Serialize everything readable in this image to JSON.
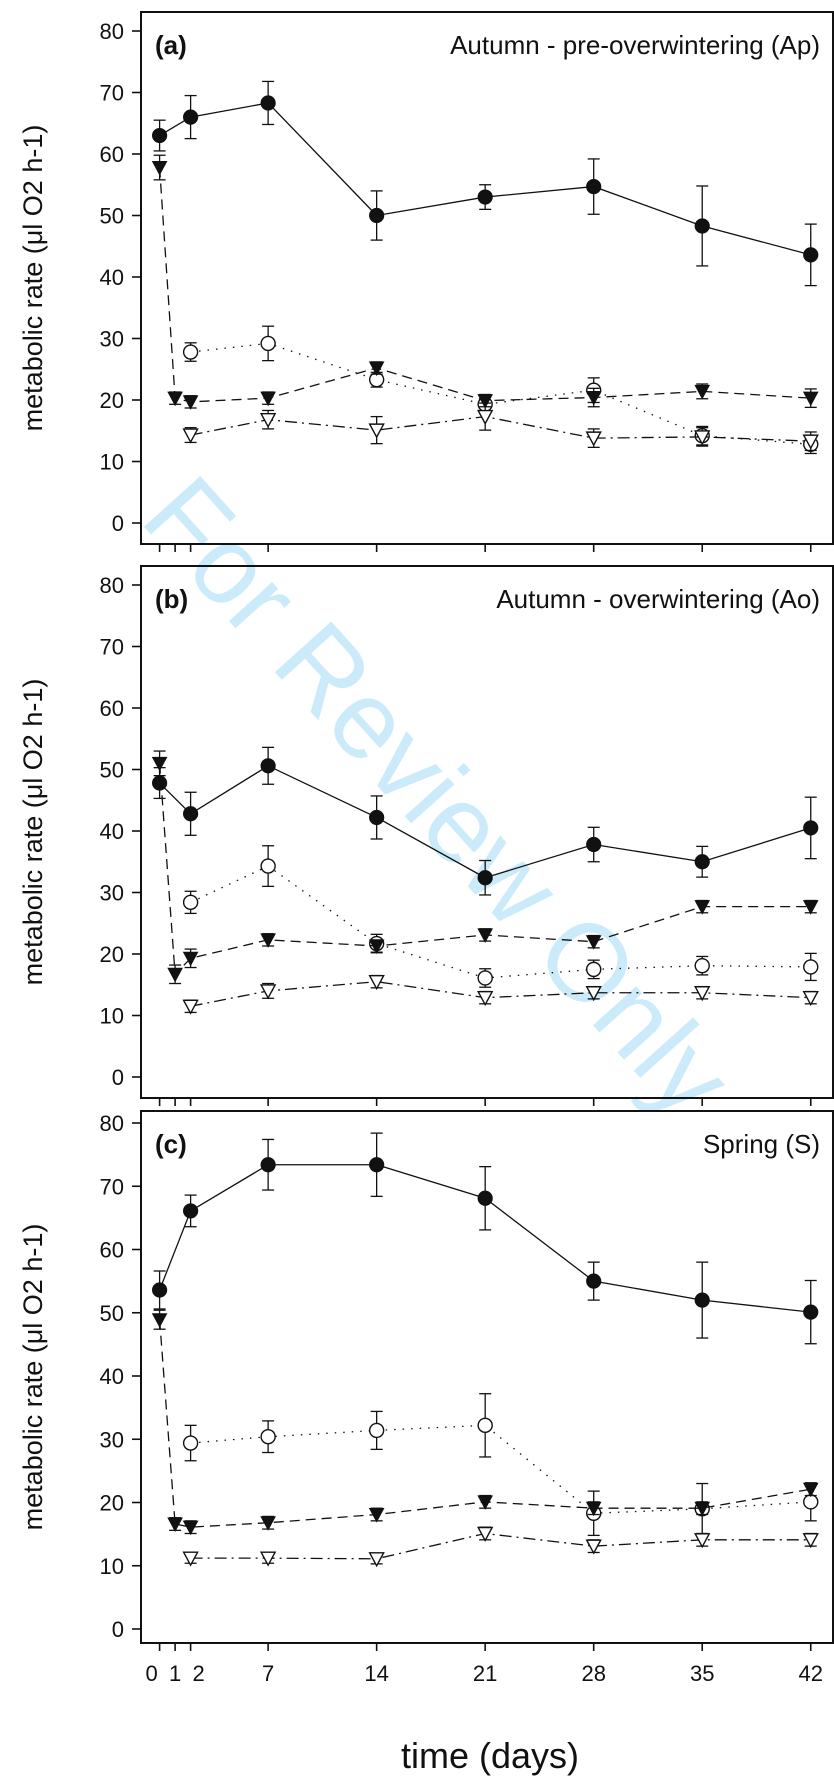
{
  "chart_data": [
    {
      "type": "line",
      "panel": "(a)",
      "title": "Autumn - pre-overwintering (Ap)",
      "ylabel": "metabolic rate (μl O2 h-1)",
      "ylim": [
        0,
        80
      ],
      "yticks": [
        "0",
        "10",
        "20",
        "30",
        "40",
        "50",
        "60",
        "70",
        "80"
      ],
      "series": [
        {
          "marker": "filled-circle",
          "line": "solid",
          "x": [
            0,
            2,
            7,
            14,
            21,
            28,
            35,
            42
          ],
          "y": [
            63,
            66,
            68.3,
            50,
            53,
            54.7,
            48.3,
            43.6
          ],
          "err": [
            2.5,
            3.5,
            3.5,
            4,
            2,
            4.5,
            6.5,
            5
          ]
        },
        {
          "marker": "open-circle",
          "line": "dotted",
          "x": [
            2,
            7,
            14,
            21,
            28,
            35,
            42
          ],
          "y": [
            27.8,
            29.2,
            23.3,
            19.3,
            21.6,
            14.2,
            12.8
          ],
          "err": [
            1.5,
            2.8,
            1.2,
            1.2,
            2,
            1.5,
            1.5
          ]
        },
        {
          "marker": "filled-triangle",
          "line": "dashed",
          "x": [
            0,
            1,
            2,
            7,
            14,
            21,
            28,
            35,
            42
          ],
          "y": [
            57.8,
            20.3,
            19.7,
            20.3,
            25.2,
            19.9,
            20.4,
            21.4,
            20.3
          ],
          "err": [
            2,
            1,
            1,
            1,
            1,
            1,
            1.5,
            1.2,
            1.5
          ]
        },
        {
          "marker": "open-triangle",
          "line": "dashdot",
          "x": [
            2,
            7,
            14,
            21,
            28,
            35,
            42
          ],
          "y": [
            14.3,
            16.8,
            15.1,
            17.3,
            13.8,
            14,
            13.3
          ],
          "err": [
            1.2,
            1.5,
            2.2,
            2.2,
            1.5,
            1.5,
            1.5
          ]
        }
      ]
    },
    {
      "type": "line",
      "panel": "(b)",
      "title": "Autumn - overwintering (Ao)",
      "ylabel": "metabolic rate (μl O2 h-1)",
      "ylim": [
        0,
        80
      ],
      "yticks": [
        "0",
        "10",
        "20",
        "30",
        "40",
        "50",
        "60",
        "70",
        "80"
      ],
      "series": [
        {
          "marker": "filled-circle",
          "line": "solid",
          "x": [
            0,
            2,
            7,
            14,
            21,
            28,
            35,
            42
          ],
          "y": [
            47.8,
            42.8,
            50.6,
            42.2,
            32.4,
            37.8,
            35,
            40.5
          ],
          "err": [
            2.5,
            3.5,
            3,
            3.5,
            2.8,
            2.8,
            2.5,
            5
          ]
        },
        {
          "marker": "open-circle",
          "line": "dotted",
          "x": [
            2,
            7,
            14,
            21,
            28,
            35,
            42
          ],
          "y": [
            28.4,
            34.3,
            21.7,
            16.1,
            17.5,
            18.1,
            17.9
          ],
          "err": [
            1.8,
            3.3,
            1.5,
            1.5,
            1.5,
            1.5,
            2.2
          ]
        },
        {
          "marker": "filled-triangle",
          "line": "dashed",
          "x": [
            0,
            1,
            2,
            7,
            14,
            21,
            28,
            35,
            42
          ],
          "y": [
            51,
            16.7,
            19.3,
            22.3,
            21.3,
            23.1,
            22,
            27.7,
            27.7
          ],
          "err": [
            2,
            1.5,
            1.5,
            1,
            1,
            1,
            1,
            1,
            1
          ]
        },
        {
          "marker": "open-triangle",
          "line": "dashdot",
          "x": [
            2,
            7,
            14,
            21,
            28,
            35,
            42
          ],
          "y": [
            11.5,
            14,
            15.5,
            12.9,
            13.7,
            13.7,
            12.9
          ],
          "err": [
            1,
            1.2,
            1,
            1,
            1,
            1,
            1
          ]
        }
      ]
    },
    {
      "type": "line",
      "panel": "(c)",
      "title": "Spring (S)",
      "ylabel": "metabolic rate (μl O2 h-1)",
      "ylim": [
        0,
        80
      ],
      "yticks": [
        "0",
        "10",
        "20",
        "30",
        "40",
        "50",
        "60",
        "70",
        "80"
      ],
      "series": [
        {
          "marker": "filled-circle",
          "line": "solid",
          "x": [
            0,
            2,
            7,
            14,
            21,
            28,
            35,
            42
          ],
          "y": [
            53.6,
            66.1,
            73.4,
            73.4,
            68.1,
            55,
            52,
            50.1
          ],
          "err": [
            3,
            2.5,
            4,
            5,
            5,
            3,
            6,
            5
          ]
        },
        {
          "marker": "open-circle",
          "line": "dotted",
          "x": [
            2,
            7,
            14,
            21,
            28,
            35,
            42
          ],
          "y": [
            29.4,
            30.4,
            31.4,
            32.2,
            18.3,
            19,
            20.1
          ],
          "err": [
            2.8,
            2.5,
            3,
            5,
            3.5,
            4,
            3
          ]
        },
        {
          "marker": "filled-triangle",
          "line": "dashed",
          "x": [
            0,
            1,
            2,
            7,
            14,
            21,
            28,
            35,
            42
          ],
          "y": [
            48.9,
            16.6,
            16.1,
            16.8,
            18.1,
            20.1,
            19.1,
            19.1,
            22.1
          ],
          "err": [
            1.5,
            1,
            1,
            1,
            1,
            1,
            1,
            1,
            1
          ]
        },
        {
          "marker": "open-triangle",
          "line": "dashdot",
          "x": [
            2,
            7,
            14,
            21,
            28,
            35,
            42
          ],
          "y": [
            11.2,
            11.2,
            11.1,
            15.1,
            13.1,
            14.1,
            14.1
          ],
          "err": [
            0.8,
            0.8,
            0.8,
            1,
            1,
            1,
            1
          ]
        }
      ]
    }
  ],
  "x_axis": {
    "label": "time (days)",
    "ticks": [
      0,
      1,
      2,
      7,
      14,
      21,
      28,
      35,
      42
    ],
    "tick_labels": [
      "0",
      "1",
      "2",
      "7",
      "14",
      "21",
      "28",
      "35",
      "42"
    ],
    "xlim": [
      -1.2,
      43.5
    ]
  },
  "watermark": "For Review Only",
  "colors": {
    "ink": "#111111",
    "watermark": "#8fd3f4",
    "background": "#ffffff"
  }
}
